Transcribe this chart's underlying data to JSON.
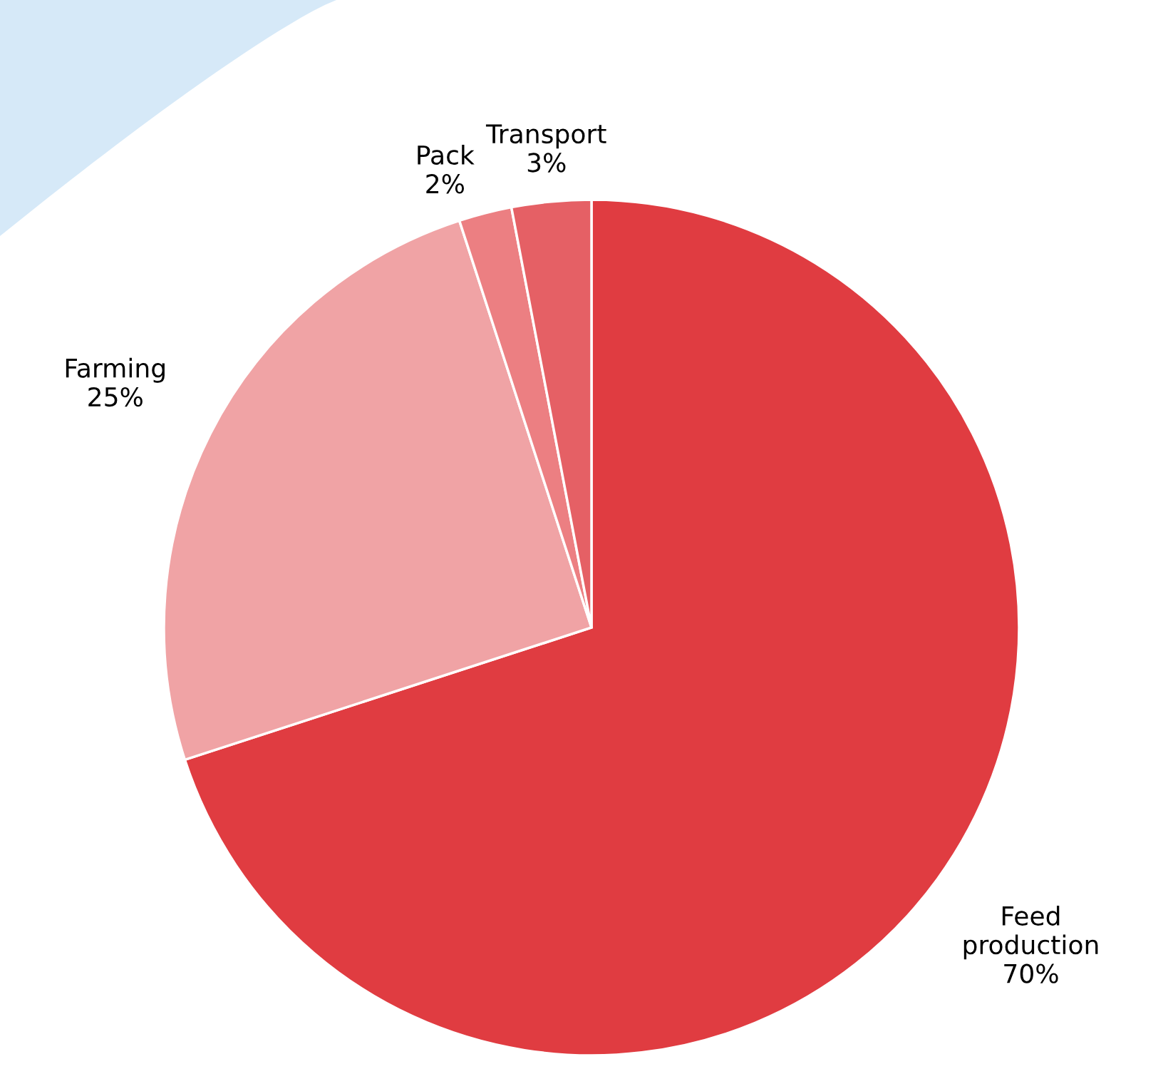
{
  "chart_data": {
    "type": "pie",
    "categories": [
      "Feed\nproduction",
      "Farming",
      "Pack",
      "Transport"
    ],
    "values": [
      70,
      25,
      2,
      3
    ],
    "colors": [
      "#e03c41",
      "#f0a3a5",
      "#ec7f82",
      "#e56065"
    ],
    "value_labels": [
      "70%",
      "25%",
      "2%",
      "3%"
    ],
    "legend": false
  }
}
